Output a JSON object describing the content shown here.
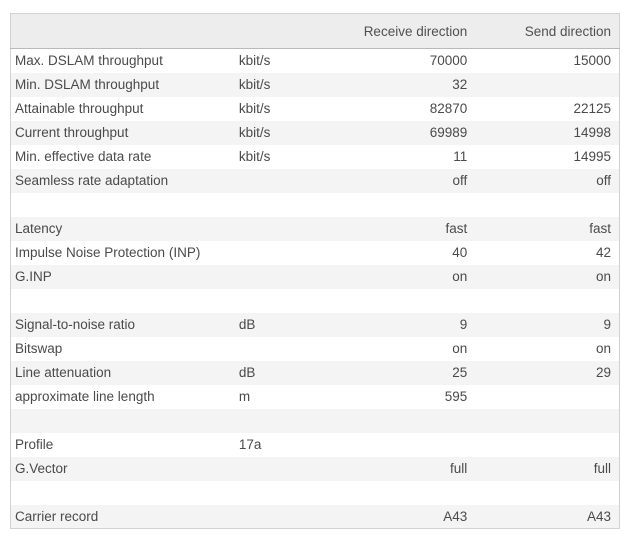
{
  "colors": {
    "table_border": "#d2d2d2",
    "header_bg": "#ededed",
    "header_border": "#b9b9b9",
    "stripe_bg": "#f4f4f4",
    "text": "#4a4a4a",
    "page_bg": "#ffffff"
  },
  "table": {
    "header": {
      "label": "",
      "unit": "",
      "receive": "Receive direction",
      "send": "Send direction"
    },
    "rows": [
      {
        "label": "Max. DSLAM throughput",
        "unit": "kbit/s",
        "receive": "70000",
        "send": "15000"
      },
      {
        "label": "Min. DSLAM throughput",
        "unit": "kbit/s",
        "receive": "32",
        "send": ""
      },
      {
        "label": "Attainable throughput",
        "unit": "kbit/s",
        "receive": "82870",
        "send": "22125"
      },
      {
        "label": "Current throughput",
        "unit": "kbit/s",
        "receive": "69989",
        "send": "14998"
      },
      {
        "label": "Min. effective data rate",
        "unit": "kbit/s",
        "receive": "11",
        "send": "14995"
      },
      {
        "label": "Seamless rate adaptation",
        "unit": "",
        "receive": "off",
        "send": "off"
      },
      {
        "spacer": true,
        "label": "",
        "unit": "",
        "receive": "",
        "send": ""
      },
      {
        "label": "Latency",
        "unit": "",
        "receive": "fast",
        "send": "fast"
      },
      {
        "label": "Impulse Noise Protection (INP)",
        "unit": "",
        "receive": "40",
        "send": "42"
      },
      {
        "label": "G.INP",
        "unit": "",
        "receive": "on",
        "send": "on"
      },
      {
        "spacer": true,
        "label": "",
        "unit": "",
        "receive": "",
        "send": ""
      },
      {
        "label": "Signal-to-noise ratio",
        "unit": "dB",
        "receive": "9",
        "send": "9"
      },
      {
        "label": "Bitswap",
        "unit": "",
        "receive": "on",
        "send": "on"
      },
      {
        "label": "Line attenuation",
        "unit": "dB",
        "receive": "25",
        "send": "29"
      },
      {
        "label": "approximate line length",
        "unit": "m",
        "receive": "595",
        "send": ""
      },
      {
        "spacer": true,
        "label": "",
        "unit": "",
        "receive": "",
        "send": ""
      },
      {
        "label": "Profile",
        "unit": "17a",
        "receive": "",
        "send": ""
      },
      {
        "label": "G.Vector",
        "unit": "",
        "receive": "full",
        "send": "full"
      },
      {
        "spacer": true,
        "label": "",
        "unit": "",
        "receive": "",
        "send": ""
      },
      {
        "label": "Carrier record",
        "unit": "",
        "receive": "A43",
        "send": "A43"
      }
    ]
  }
}
